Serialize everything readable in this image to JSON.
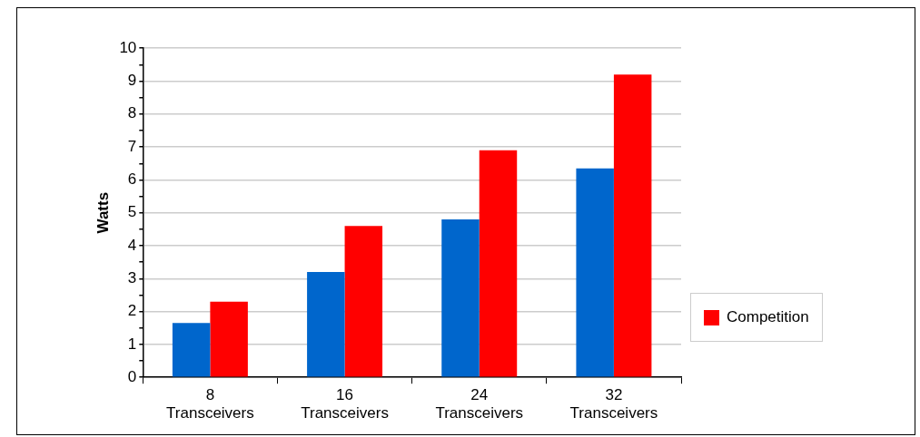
{
  "chart_data": {
    "type": "bar",
    "ylabel": "Watts",
    "categories": [
      "8 Transceivers",
      "16 Transceivers",
      "24 Transceivers",
      "32 Transceivers"
    ],
    "series": [
      {
        "color": "#0066cc",
        "values": [
          1.65,
          3.2,
          4.8,
          6.35
        ]
      },
      {
        "name": "Competition",
        "color": "#ff0000",
        "values": [
          2.3,
          4.6,
          6.9,
          9.2
        ]
      }
    ],
    "ylim": [
      0,
      10
    ],
    "yticks": [
      0,
      {
        "value": 0.5,
        "label": null
      },
      1,
      {
        "value": 1.5,
        "label": null
      },
      2,
      {
        "value": 2.5,
        "label": null
      },
      3,
      {
        "value": 3.5,
        "label": null
      },
      4,
      {
        "value": 4.5,
        "label": null
      },
      5,
      {
        "value": 5.5,
        "label": null
      },
      6,
      {
        "value": 6.5,
        "label": null
      },
      7,
      {
        "value": 7.5,
        "label": null
      },
      8,
      {
        "value": 8.5,
        "label": null
      },
      9,
      {
        "value": 9.5,
        "label": null
      },
      10
    ],
    "grid": "y",
    "legend": "bottom right"
  }
}
